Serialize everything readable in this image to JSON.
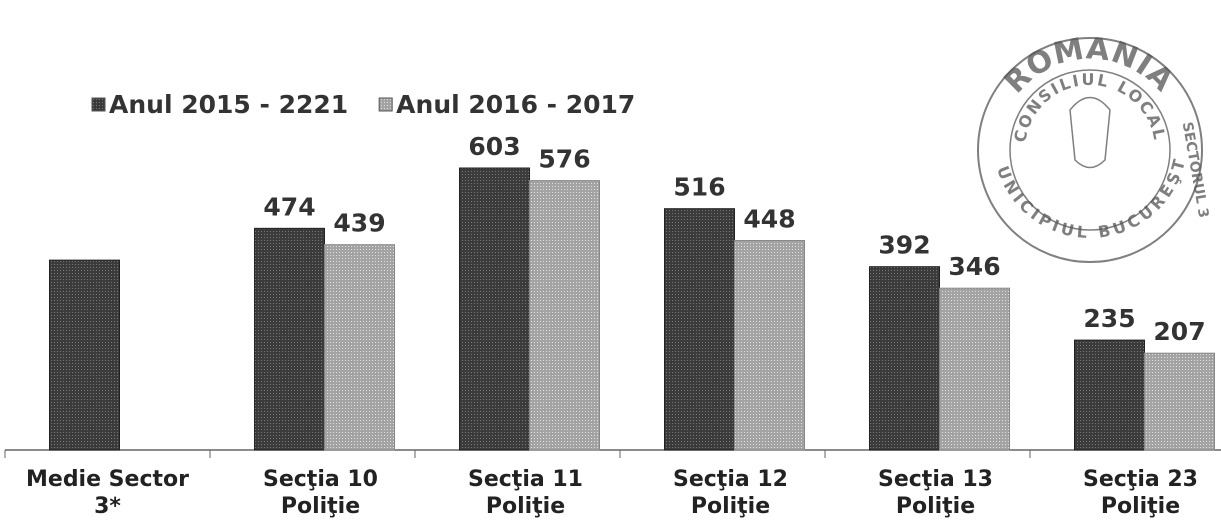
{
  "chart_data": {
    "type": "bar",
    "categories": [
      "Medie Sector 3*",
      "Secţia 10 Poliţie",
      "Secţia 11 Poliţie",
      "Secţia 12 Poliţie",
      "Secţia 13 Poliţie",
      "Secţia 23 Poliţie"
    ],
    "series": [
      {
        "name": "Anul 2015 - 2221",
        "color": "#3b3b3b",
        "values": [
          406,
          474,
          603,
          516,
          392,
          235
        ]
      },
      {
        "name": "Anul 2016 - 2017",
        "color": "#a3a3a3",
        "values": [
          null,
          439,
          576,
          448,
          346,
          207
        ]
      }
    ],
    "value_labels_shown": [
      false,
      true,
      true,
      true,
      true,
      true
    ],
    "legend": "top-left"
  },
  "stamp": {
    "top": "ROMANIA",
    "ring": "MUNICIPIUL BUCUREŞTI",
    "middle": "CONSILIUL LOCAL",
    "right": "SECTORUL 3"
  }
}
